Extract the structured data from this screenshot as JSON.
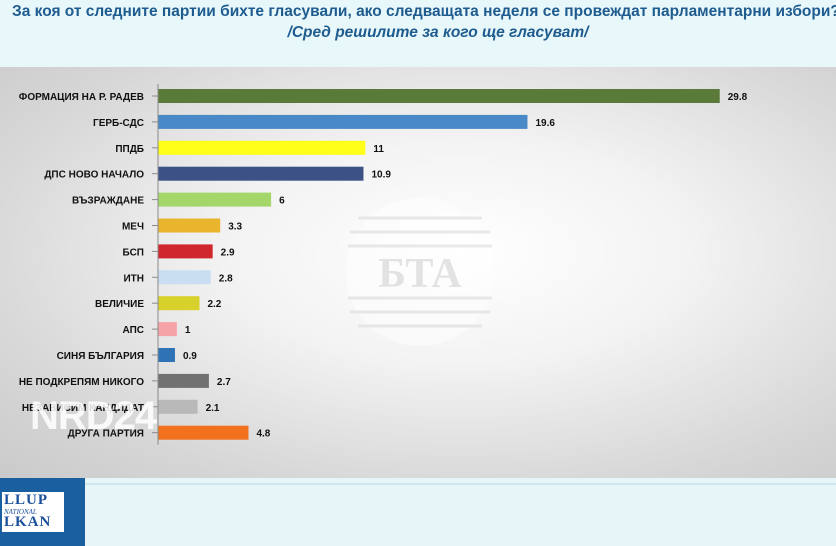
{
  "header": {
    "title": "За коя от следните партии бихте  гласували,  ако следващата неделя се провеждат парламентарни избори?",
    "subtitle": "/Сред решилите за кого ще гласуват/"
  },
  "watermarks": {
    "center_logo": "БТА",
    "overlay": "NRD24"
  },
  "footer": {
    "logo_line1": "LLUP",
    "logo_line2": "NATIONAL",
    "logo_line3": "LKAN"
  },
  "chart_data": {
    "type": "bar",
    "orientation": "horizontal",
    "categories": [
      "ФОРМАЦИЯ НА Р. РАДЕВ",
      "ГЕРБ-СДС",
      "ППДБ",
      "ДПС НОВО НАЧАЛО",
      "ВЪЗРАЖДАНЕ",
      "МЕЧ",
      "БСП",
      "ИТН",
      "ВЕЛИЧИЕ",
      "АПС",
      "СИНЯ БЪЛГАРИЯ",
      "НЕ ПОДКРЕПЯМ НИКОГО",
      "НЕЗАВИСИМ КАНДИДАТ",
      "ДРУГА ПАРТИЯ"
    ],
    "values": [
      29.8,
      19.6,
      11,
      10.9,
      6,
      3.3,
      2.9,
      2.8,
      2.2,
      1,
      0.9,
      2.7,
      2.1,
      4.8
    ],
    "value_labels": [
      "29.8",
      "19.6",
      "11",
      "10.9",
      "6",
      "3.3",
      "2.9",
      "2.8",
      "2.2",
      "1",
      "0.9",
      "2.7",
      "2.1",
      "4.8"
    ],
    "colors": [
      "#5a7a3a",
      "#4a89c8",
      "#ffff1a",
      "#3c5186",
      "#a5d66a",
      "#e8b52c",
      "#d0272e",
      "#c9dff1",
      "#d8d12c",
      "#f5a3a6",
      "#2f72b6",
      "#717171",
      "#b9b9b9",
      "#f2711d"
    ],
    "xlim": [
      0,
      30
    ],
    "grid": false,
    "legend": "none"
  }
}
